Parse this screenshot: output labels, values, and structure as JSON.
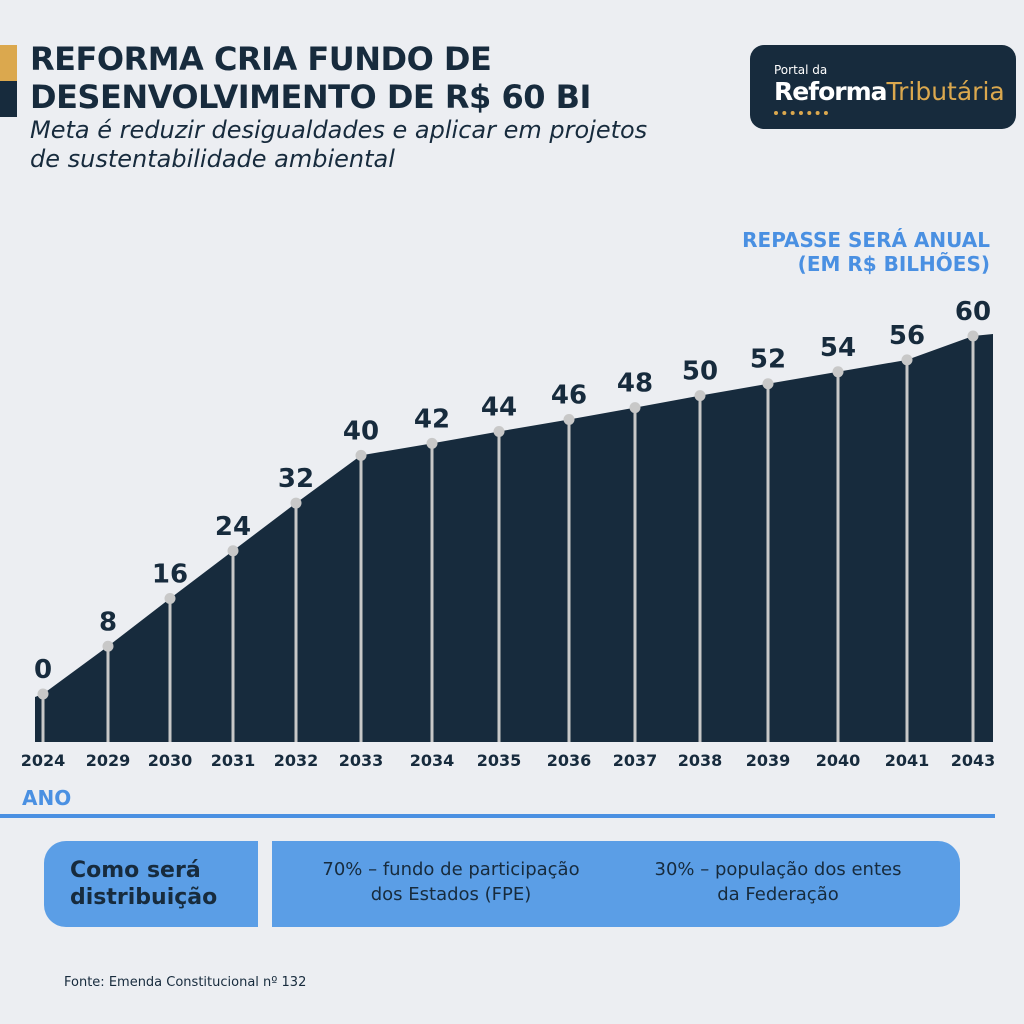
{
  "header": {
    "title": "REFORMA CRIA FUNDO DE DESENVOLVIMENTO DE R$ 60 BI",
    "subtitle": "Meta é reduzir desigualdades e aplicar em projetos de sustentabilidade ambiental"
  },
  "logo": {
    "small_text": "Portal da",
    "main_bold": "Reforma",
    "main_light": "Tributária"
  },
  "chart_data": {
    "type": "area",
    "title": "REPASSE SERÁ ANUAL (EM R$ BILHÕES)",
    "unit_label_line1": "REPASSE SERÁ ANUAL",
    "unit_label_line2": "(EM R$ BILHÕES)",
    "xlabel": "ANO",
    "ylabel": "R$ bilhões",
    "categories": [
      "2024",
      "2029",
      "2030",
      "2031",
      "2032",
      "2033",
      "2034",
      "2035",
      "2036",
      "2037",
      "2038",
      "2039",
      "2040",
      "2041",
      "2043"
    ],
    "values": [
      0,
      8,
      16,
      24,
      32,
      40,
      42,
      44,
      46,
      48,
      50,
      52,
      54,
      56,
      60
    ],
    "ylim": [
      0,
      60
    ],
    "grid": false,
    "colors": {
      "area": "#172b3d",
      "line": "#c8c8c8",
      "marker": "#c8c8c8",
      "label": "#172b3d",
      "tick": "#172b3d"
    }
  },
  "distribution": {
    "title_line1": "Como será",
    "title_line2": "distribuição",
    "item1_line1": "70% – fundo de participação",
    "item1_line2": "dos Estados (FPE)",
    "item2_line1": "30% – população dos entes",
    "item2_line2": "da Federação"
  },
  "source": "Fonte: Emenda Constitucional nº 132",
  "colors": {
    "background": "#eceef2",
    "navy": "#172b3d",
    "gold": "#dba84e",
    "blue": "#4a90e2",
    "light_blue": "#5b9ee6"
  }
}
